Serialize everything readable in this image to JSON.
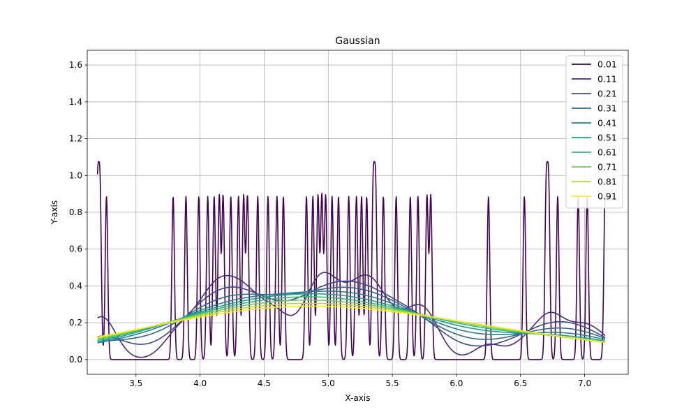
{
  "chart_data": {
    "type": "line",
    "title": "Gaussian",
    "xlabel": "X-axis",
    "ylabel": "Y-axis",
    "xlim": [
      3.12,
      7.34
    ],
    "ylim": [
      -0.08,
      1.68
    ],
    "xticks": [
      3.5,
      4.0,
      4.5,
      5.0,
      5.5,
      6.0,
      6.5,
      7.0
    ],
    "xtick_labels": [
      "3.5",
      "4.0",
      "4.5",
      "5.0",
      "5.5",
      "6.0",
      "6.5",
      "7.0"
    ],
    "yticks": [
      0.0,
      0.2,
      0.4,
      0.6,
      0.8,
      1.0,
      1.2,
      1.4,
      1.6
    ],
    "ytick_labels": [
      "0.0",
      "0.2",
      "0.4",
      "0.6",
      "0.8",
      "1.0",
      "1.2",
      "1.4",
      "1.6"
    ],
    "grid": true,
    "legend_position": "top-right",
    "x_range": [
      3.2,
      7.16
    ],
    "samples": [
      3.2,
      3.22,
      3.27,
      3.79,
      3.89,
      3.99,
      4.06,
      4.11,
      4.15,
      4.18,
      4.24,
      4.3,
      4.34,
      4.37,
      4.45,
      4.53,
      4.6,
      4.65,
      4.83,
      4.88,
      4.92,
      4.95,
      4.98,
      5.03,
      5.08,
      5.16,
      5.22,
      5.26,
      5.3,
      5.35,
      5.37,
      5.43,
      5.53,
      5.64,
      5.7,
      5.77,
      5.8,
      6.25,
      6.53,
      6.7,
      6.72,
      6.79,
      6.95,
      7.02,
      7.16
    ],
    "series": [
      {
        "name": "0.01",
        "bandwidth": 0.01,
        "color": "#440154"
      },
      {
        "name": "0.11",
        "bandwidth": 0.11,
        "color": "#482878"
      },
      {
        "name": "0.21",
        "bandwidth": 0.21,
        "color": "#3e4989"
      },
      {
        "name": "0.31",
        "bandwidth": 0.31,
        "color": "#31688e"
      },
      {
        "name": "0.41",
        "bandwidth": 0.41,
        "color": "#26828e"
      },
      {
        "name": "0.51",
        "bandwidth": 0.51,
        "color": "#1f9e89"
      },
      {
        "name": "0.61",
        "bandwidth": 0.61,
        "color": "#35b779"
      },
      {
        "name": "0.71",
        "bandwidth": 0.71,
        "color": "#6ece58"
      },
      {
        "name": "0.81",
        "bandwidth": 0.81,
        "color": "#b5de2b"
      },
      {
        "name": "0.91",
        "bandwidth": 0.91,
        "color": "#fde725"
      }
    ]
  }
}
